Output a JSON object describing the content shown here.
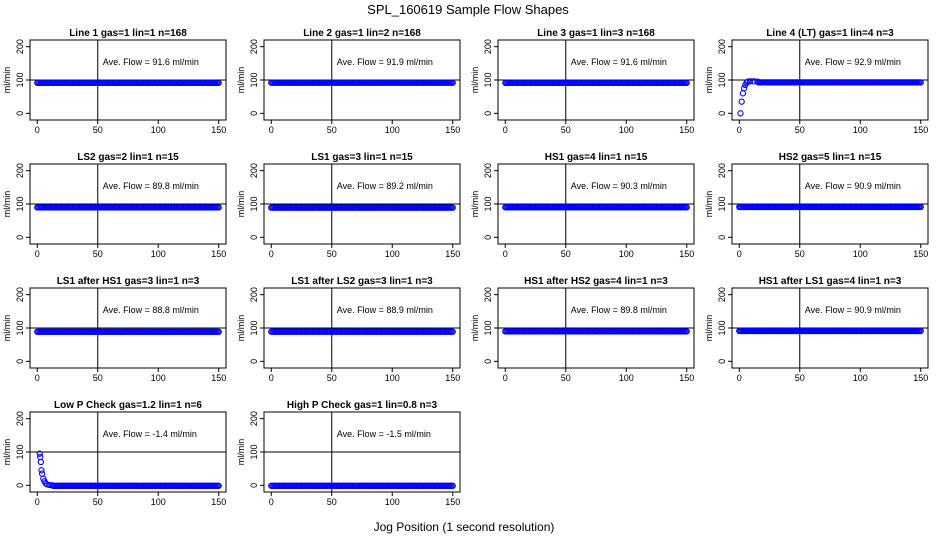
{
  "main_title": "SPL_160619  Sample Flow Shapes",
  "x_axis_label": "Jog Position (1 second resolution)",
  "chart_data": [
    {
      "type": "scatter",
      "title": "Line 1 gas=1 lin=1 n=168",
      "ylabel": "ml/min",
      "annotation": "Ave. Flow =  91.6  ml/min",
      "xlim": [
        0,
        150
      ],
      "ylim": [
        -20,
        220
      ],
      "xticks": [
        0,
        50,
        100,
        150
      ],
      "yticks": [
        0,
        100,
        200
      ],
      "vline_x": 50,
      "hline_y": 100,
      "series": [
        {
          "name": "flow",
          "color": "#0000ff",
          "pattern": "flat",
          "x_start": 0,
          "x_end": 150,
          "level": 91.6,
          "ramp": []
        }
      ]
    },
    {
      "type": "scatter",
      "title": "Line 2 gas=1 lin=2 n=168",
      "ylabel": "ml/min",
      "annotation": "Ave. Flow =  91.9  ml/min",
      "xlim": [
        0,
        150
      ],
      "ylim": [
        -20,
        220
      ],
      "xticks": [
        0,
        50,
        100,
        150
      ],
      "yticks": [
        0,
        100,
        200
      ],
      "vline_x": 50,
      "hline_y": 100,
      "series": [
        {
          "name": "flow",
          "color": "#0000ff",
          "pattern": "flat",
          "x_start": 0,
          "x_end": 150,
          "level": 91.9,
          "ramp": []
        }
      ]
    },
    {
      "type": "scatter",
      "title": "Line 3 gas=1 lin=3 n=168",
      "ylabel": "ml/min",
      "annotation": "Ave. Flow =  91.6  ml/min",
      "xlim": [
        0,
        150
      ],
      "ylim": [
        -20,
        220
      ],
      "xticks": [
        0,
        50,
        100,
        150
      ],
      "yticks": [
        0,
        100,
        200
      ],
      "vline_x": 50,
      "hline_y": 100,
      "series": [
        {
          "name": "flow",
          "color": "#0000ff",
          "pattern": "flat",
          "x_start": 0,
          "x_end": 150,
          "level": 91.6,
          "ramp": []
        }
      ]
    },
    {
      "type": "scatter",
      "title": "Line 4 (LT) gas=1 lin=4 n=3",
      "ylabel": "ml/min",
      "annotation": "Ave. Flow =  92.9  ml/min",
      "xlim": [
        0,
        150
      ],
      "ylim": [
        -20,
        220
      ],
      "xticks": [
        0,
        50,
        100,
        150
      ],
      "yticks": [
        0,
        100,
        200
      ],
      "vline_x": 50,
      "hline_y": 100,
      "series": [
        {
          "name": "flow",
          "color": "#0000ff",
          "pattern": "ramp-then-flat",
          "x_start": 0,
          "x_end": 150,
          "level": 92.9,
          "ramp": [
            [
              1,
              0
            ],
            [
              2,
              35
            ],
            [
              3,
              60
            ],
            [
              4,
              75
            ],
            [
              5,
              85
            ],
            [
              6,
              92
            ],
            [
              7,
              95
            ],
            [
              9,
              96
            ],
            [
              12,
              96
            ],
            [
              15,
              95
            ]
          ]
        }
      ]
    },
    {
      "type": "scatter",
      "title": "LS2 gas=2 lin=1 n=15",
      "ylabel": "ml/min",
      "annotation": "Ave. Flow =  89.8  ml/min",
      "xlim": [
        0,
        150
      ],
      "ylim": [
        -20,
        220
      ],
      "xticks": [
        0,
        50,
        100,
        150
      ],
      "yticks": [
        0,
        100,
        200
      ],
      "vline_x": 50,
      "hline_y": 100,
      "series": [
        {
          "name": "flow",
          "color": "#0000ff",
          "pattern": "flat",
          "x_start": 0,
          "x_end": 150,
          "level": 89.8,
          "ramp": []
        }
      ]
    },
    {
      "type": "scatter",
      "title": "LS1 gas=3 lin=1 n=15",
      "ylabel": "ml/min",
      "annotation": "Ave. Flow =  89.2  ml/min",
      "xlim": [
        0,
        150
      ],
      "ylim": [
        -20,
        220
      ],
      "xticks": [
        0,
        50,
        100,
        150
      ],
      "yticks": [
        0,
        100,
        200
      ],
      "vline_x": 50,
      "hline_y": 100,
      "series": [
        {
          "name": "flow",
          "color": "#0000ff",
          "pattern": "flat",
          "x_start": 0,
          "x_end": 150,
          "level": 89.2,
          "ramp": []
        }
      ]
    },
    {
      "type": "scatter",
      "title": "HS1 gas=4 lin=1 n=15",
      "ylabel": "ml/min",
      "annotation": "Ave. Flow =  90.3  ml/min",
      "xlim": [
        0,
        150
      ],
      "ylim": [
        -20,
        220
      ],
      "xticks": [
        0,
        50,
        100,
        150
      ],
      "yticks": [
        0,
        100,
        200
      ],
      "vline_x": 50,
      "hline_y": 100,
      "series": [
        {
          "name": "flow",
          "color": "#0000ff",
          "pattern": "flat",
          "x_start": 0,
          "x_end": 150,
          "level": 90.3,
          "ramp": []
        }
      ]
    },
    {
      "type": "scatter",
      "title": "HS2 gas=5 lin=1 n=15",
      "ylabel": "ml/min",
      "annotation": "Ave. Flow =  90.9  ml/min",
      "xlim": [
        0,
        150
      ],
      "ylim": [
        -20,
        220
      ],
      "xticks": [
        0,
        50,
        100,
        150
      ],
      "yticks": [
        0,
        100,
        200
      ],
      "vline_x": 50,
      "hline_y": 100,
      "series": [
        {
          "name": "flow",
          "color": "#0000ff",
          "pattern": "flat",
          "x_start": 0,
          "x_end": 150,
          "level": 90.9,
          "ramp": []
        }
      ]
    },
    {
      "type": "scatter",
      "title": "LS1 after HS1 gas=3 lin=1 n=3",
      "ylabel": "ml/min",
      "annotation": "Ave. Flow =  88.8  ml/min",
      "xlim": [
        0,
        150
      ],
      "ylim": [
        -20,
        220
      ],
      "xticks": [
        0,
        50,
        100,
        150
      ],
      "yticks": [
        0,
        100,
        200
      ],
      "vline_x": 50,
      "hline_y": 100,
      "series": [
        {
          "name": "flow",
          "color": "#0000ff",
          "pattern": "flat",
          "x_start": 0,
          "x_end": 150,
          "level": 88.8,
          "ramp": []
        }
      ]
    },
    {
      "type": "scatter",
      "title": "LS1 after LS2 gas=3 lin=1 n=3",
      "ylabel": "ml/min",
      "annotation": "Ave. Flow =  88.9  ml/min",
      "xlim": [
        0,
        150
      ],
      "ylim": [
        -20,
        220
      ],
      "xticks": [
        0,
        50,
        100,
        150
      ],
      "yticks": [
        0,
        100,
        200
      ],
      "vline_x": 50,
      "hline_y": 100,
      "series": [
        {
          "name": "flow",
          "color": "#0000ff",
          "pattern": "flat",
          "x_start": 0,
          "x_end": 150,
          "level": 88.9,
          "ramp": []
        }
      ]
    },
    {
      "type": "scatter",
      "title": "HS1 after HS2 gas=4 lin=1 n=3",
      "ylabel": "ml/min",
      "annotation": "Ave. Flow =  89.8  ml/min",
      "xlim": [
        0,
        150
      ],
      "ylim": [
        -20,
        220
      ],
      "xticks": [
        0,
        50,
        100,
        150
      ],
      "yticks": [
        0,
        100,
        200
      ],
      "vline_x": 50,
      "hline_y": 100,
      "series": [
        {
          "name": "flow",
          "color": "#0000ff",
          "pattern": "flat",
          "x_start": 0,
          "x_end": 150,
          "level": 89.8,
          "ramp": []
        }
      ]
    },
    {
      "type": "scatter",
      "title": "HS1 after LS1 gas=4 lin=1 n=3",
      "ylabel": "ml/min",
      "annotation": "Ave. Flow =  90.9  ml/min",
      "xlim": [
        0,
        150
      ],
      "ylim": [
        -20,
        220
      ],
      "xticks": [
        0,
        50,
        100,
        150
      ],
      "yticks": [
        0,
        100,
        200
      ],
      "vline_x": 50,
      "hline_y": 100,
      "series": [
        {
          "name": "flow",
          "color": "#0000ff",
          "pattern": "flat",
          "x_start": 0,
          "x_end": 150,
          "level": 90.9,
          "ramp": []
        }
      ]
    },
    {
      "type": "scatter",
      "title": "Low P Check gas=1.2 lin=1 n=6",
      "ylabel": "ml/min",
      "annotation": "Ave. Flow =  -1.4  ml/min",
      "xlim": [
        0,
        150
      ],
      "ylim": [
        -20,
        220
      ],
      "xticks": [
        0,
        50,
        100,
        150
      ],
      "yticks": [
        0,
        100,
        200
      ],
      "vline_x": 50,
      "hline_y": 100,
      "series": [
        {
          "name": "flow",
          "color": "#0000ff",
          "pattern": "decay-then-flat",
          "x_start": 0,
          "x_end": 150,
          "level": -1.4,
          "ramp": [
            [
              2,
              95
            ],
            [
              2.5,
              85
            ],
            [
              3,
              70
            ],
            [
              3.5,
              45
            ],
            [
              4,
              35
            ],
            [
              5,
              20
            ],
            [
              6,
              12
            ],
            [
              7,
              6
            ],
            [
              8,
              3
            ],
            [
              10,
              1
            ],
            [
              12,
              0
            ]
          ]
        }
      ]
    },
    {
      "type": "scatter",
      "title": "High P Check gas=1 lin=0.8 n=3",
      "ylabel": "ml/min",
      "annotation": "Ave. Flow =  -1.5  ml/min",
      "xlim": [
        0,
        150
      ],
      "ylim": [
        -20,
        220
      ],
      "xticks": [
        0,
        50,
        100,
        150
      ],
      "yticks": [
        0,
        100,
        200
      ],
      "vline_x": 50,
      "hline_y": 100,
      "series": [
        {
          "name": "flow",
          "color": "#0000ff",
          "pattern": "flat",
          "x_start": 0,
          "x_end": 150,
          "level": -1.5,
          "ramp": []
        }
      ]
    }
  ]
}
